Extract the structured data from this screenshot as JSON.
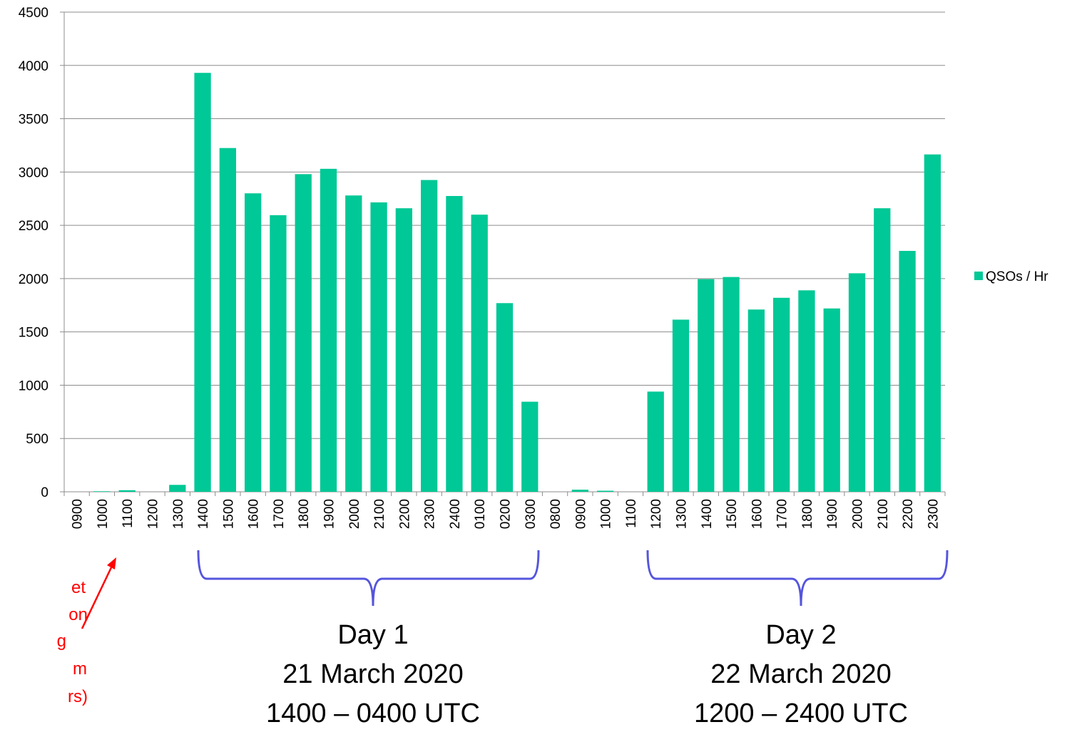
{
  "chart_data": {
    "type": "bar",
    "categories": [
      "0900",
      "1000",
      "1100",
      "1200",
      "1300",
      "1400",
      "1500",
      "1600",
      "1700",
      "1800",
      "1900",
      "2000",
      "2100",
      "2200",
      "2300",
      "2400",
      "0100",
      "0200",
      "0300",
      "0800",
      "0900",
      "1000",
      "1100",
      "1200",
      "1300",
      "1400",
      "1500",
      "1600",
      "1700",
      "1800",
      "1900",
      "2000",
      "2100",
      "2200",
      "2300"
    ],
    "series": [
      {
        "name": "QSOs / Hr",
        "color": "#00c896",
        "values": [
          0,
          5,
          15,
          0,
          65,
          3930,
          3225,
          2800,
          2595,
          2980,
          3030,
          2780,
          2715,
          2660,
          2925,
          2775,
          2600,
          1770,
          845,
          0,
          20,
          10,
          0,
          940,
          1615,
          1995,
          2015,
          1710,
          1820,
          1890,
          1720,
          2050,
          2660,
          2260,
          3165
        ]
      }
    ],
    "ylim": [
      0,
      4500
    ],
    "yticks": [
      0,
      500,
      1000,
      1500,
      2000,
      2500,
      3000,
      3500,
      4000,
      4500
    ],
    "grid": true,
    "legend": "right",
    "annotations": {
      "note": [
        "et",
        "on",
        "g",
        "m",
        "rs)"
      ],
      "day1": [
        "Day 1",
        "21 March 2020",
        "1400 – 0400 UTC"
      ],
      "day2": [
        "Day 2",
        "22 March 2020",
        "1200 – 2400 UTC"
      ]
    }
  }
}
